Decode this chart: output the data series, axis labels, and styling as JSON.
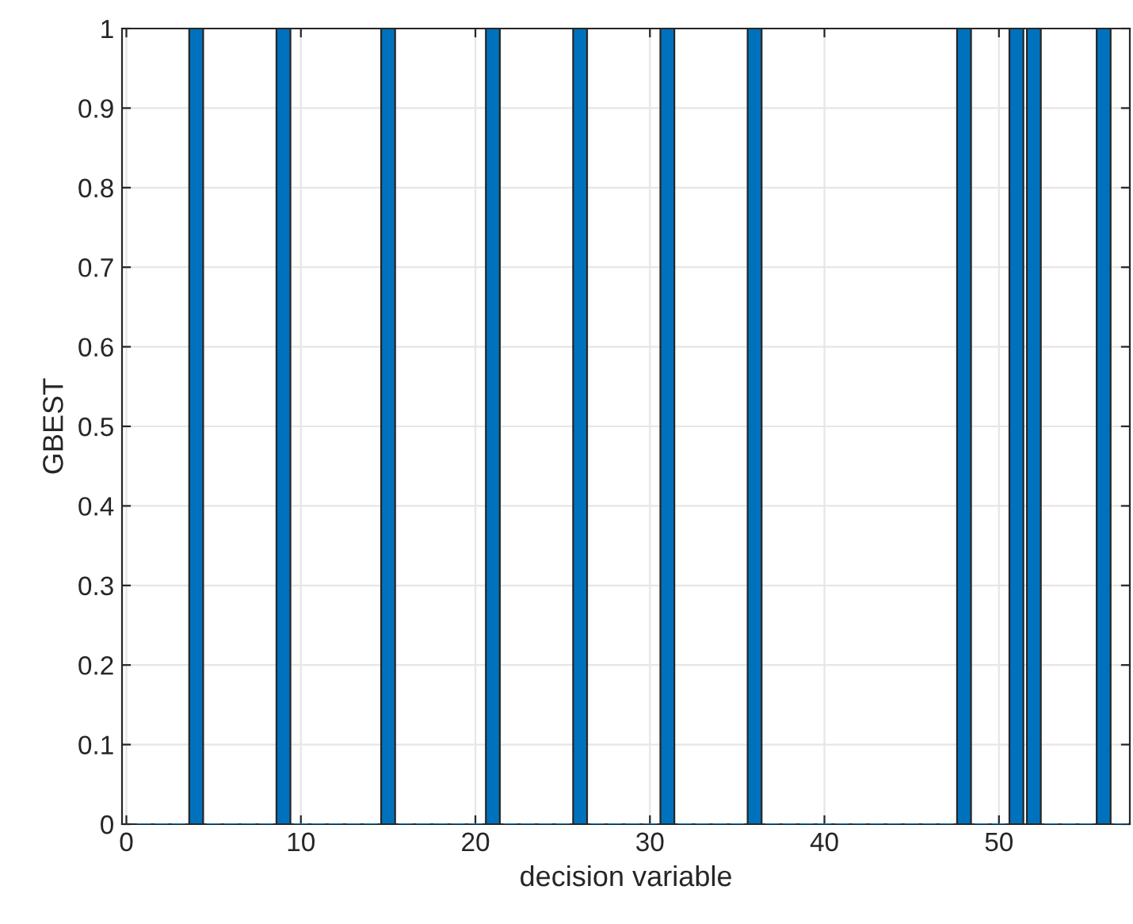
{
  "chart_data": {
    "type": "bar",
    "xlabel": "decision variable",
    "ylabel": "GBEST",
    "x": [
      1,
      2,
      3,
      4,
      5,
      6,
      7,
      8,
      9,
      10,
      11,
      12,
      13,
      14,
      15,
      16,
      17,
      18,
      19,
      20,
      21,
      22,
      23,
      24,
      25,
      26,
      27,
      28,
      29,
      30,
      31,
      32,
      33,
      34,
      35,
      36,
      37,
      38,
      39,
      40,
      41,
      42,
      43,
      44,
      45,
      46,
      47,
      48,
      49,
      50,
      51,
      52,
      53,
      54,
      55,
      56,
      57
    ],
    "values": [
      0,
      0,
      0,
      1,
      0,
      0,
      0,
      0,
      1,
      0,
      0,
      0,
      0,
      0,
      1,
      0,
      0,
      0,
      0,
      0,
      1,
      0,
      0,
      0,
      0,
      1,
      0,
      0,
      0,
      0,
      1,
      0,
      0,
      0,
      0,
      1,
      0,
      0,
      0,
      0,
      0,
      0,
      0,
      0,
      0,
      0,
      0,
      1,
      0,
      0,
      1,
      1,
      0,
      0,
      0,
      1,
      0
    ],
    "color": "#0072bd",
    "xlim": [
      -0.25,
      57.5
    ],
    "xticks": [
      0,
      10,
      20,
      30,
      40,
      50
    ],
    "ylim": [
      0,
      1
    ],
    "yticks": [
      0,
      0.1,
      0.2,
      0.3,
      0.4,
      0.5,
      0.6,
      0.7,
      0.8,
      0.9,
      1
    ],
    "grid": true
  }
}
